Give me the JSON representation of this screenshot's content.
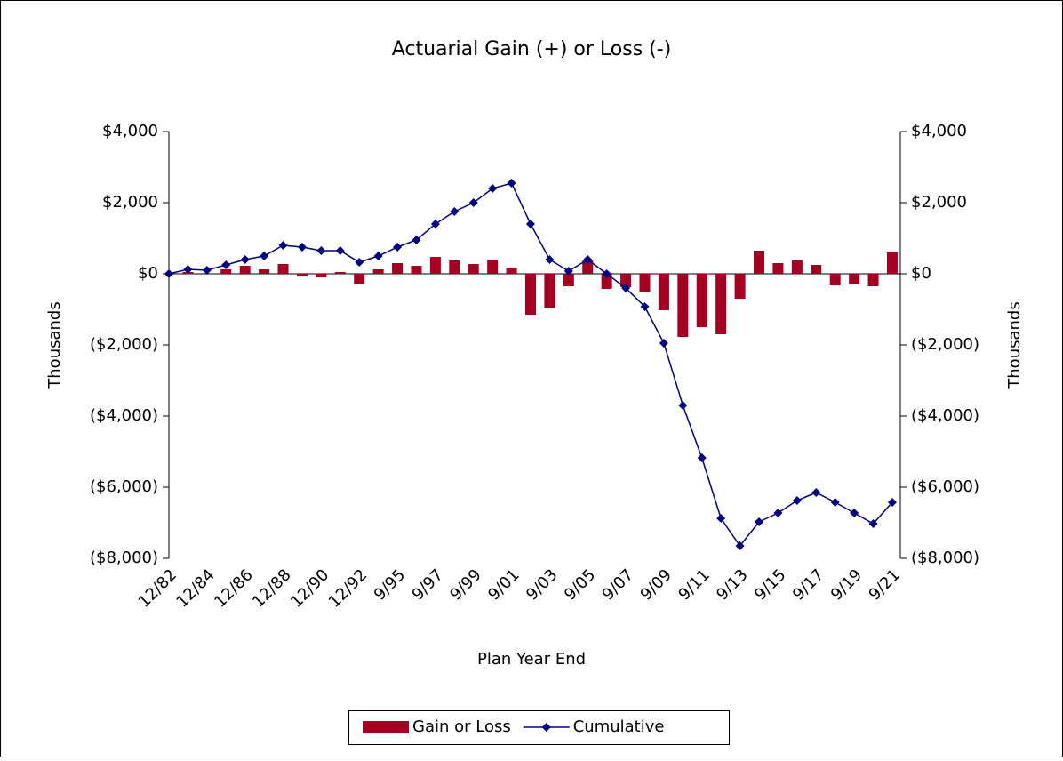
{
  "chart_data": {
    "type": "bar-line",
    "title": "Actuarial Gain (+) or Loss (-)",
    "x_label": "Plan Year End",
    "y_label": "Thousands",
    "y2_label": "Thousands",
    "categories": [
      "12/82",
      null,
      "12/84",
      null,
      "12/86",
      null,
      "12/88",
      null,
      "12/90",
      null,
      "12/92",
      null,
      "9/95",
      null,
      "9/97",
      null,
      "9/99",
      null,
      "9/01",
      null,
      "9/03",
      null,
      "9/05",
      null,
      "9/07",
      null,
      "9/09",
      null,
      "9/11",
      null,
      "9/13",
      null,
      "9/15",
      null,
      "9/17",
      null,
      "9/19",
      null,
      "9/21"
    ],
    "series": [
      {
        "name": "Gain or Loss",
        "type": "bar",
        "color": "#a50021",
        "values": [
          0,
          50,
          0,
          125,
          225,
          125,
          275,
          -75,
          -100,
          50,
          -300,
          125,
          300,
          225,
          475,
          375,
          275,
          400,
          175,
          -1150,
          -975,
          -350,
          375,
          -425,
          -375,
          -525,
          -1025,
          -1775,
          -1500,
          -1700,
          -700,
          650,
          300,
          375,
          250,
          -325,
          -300,
          -350,
          600
        ]
      },
      {
        "name": "Cumulative",
        "type": "line",
        "axis": "y2",
        "color": "#000080",
        "values": [
          0,
          125,
          100,
          250,
          400,
          500,
          800,
          750,
          650,
          650,
          325,
          500,
          750,
          950,
          1400,
          1750,
          2000,
          2400,
          2550,
          1400,
          400,
          75,
          400,
          0,
          -400,
          -925,
          -1950,
          -3700,
          -5175,
          -6875,
          -7650,
          -6975,
          -6725,
          -6375,
          -6150,
          -6425,
          -6725,
          -7025,
          -6425
        ]
      }
    ],
    "ylim": [
      -8000,
      4000
    ],
    "yticks": [
      {
        "value": -8000,
        "label": "($8,000)"
      },
      {
        "value": -6000,
        "label": "($6,000)"
      },
      {
        "value": -4000,
        "label": "($4,000)"
      },
      {
        "value": -2000,
        "label": "($2,000)"
      },
      {
        "value": 0,
        "label": "$0"
      },
      {
        "value": 2000,
        "label": "$2,000"
      },
      {
        "value": 4000,
        "label": "$4,000"
      }
    ],
    "y2lim": [
      -8000,
      4000
    ],
    "y2ticks": [
      {
        "value": -8000,
        "label": "($8,000)"
      },
      {
        "value": -6000,
        "label": "($6,000)"
      },
      {
        "value": -4000,
        "label": "($4,000)"
      },
      {
        "value": -2000,
        "label": "($2,000)"
      },
      {
        "value": 0,
        "label": "$0"
      },
      {
        "value": 2000,
        "label": "$2,000"
      },
      {
        "value": 4000,
        "label": "$4,000"
      }
    ],
    "grid": false,
    "legend": "bottom"
  }
}
